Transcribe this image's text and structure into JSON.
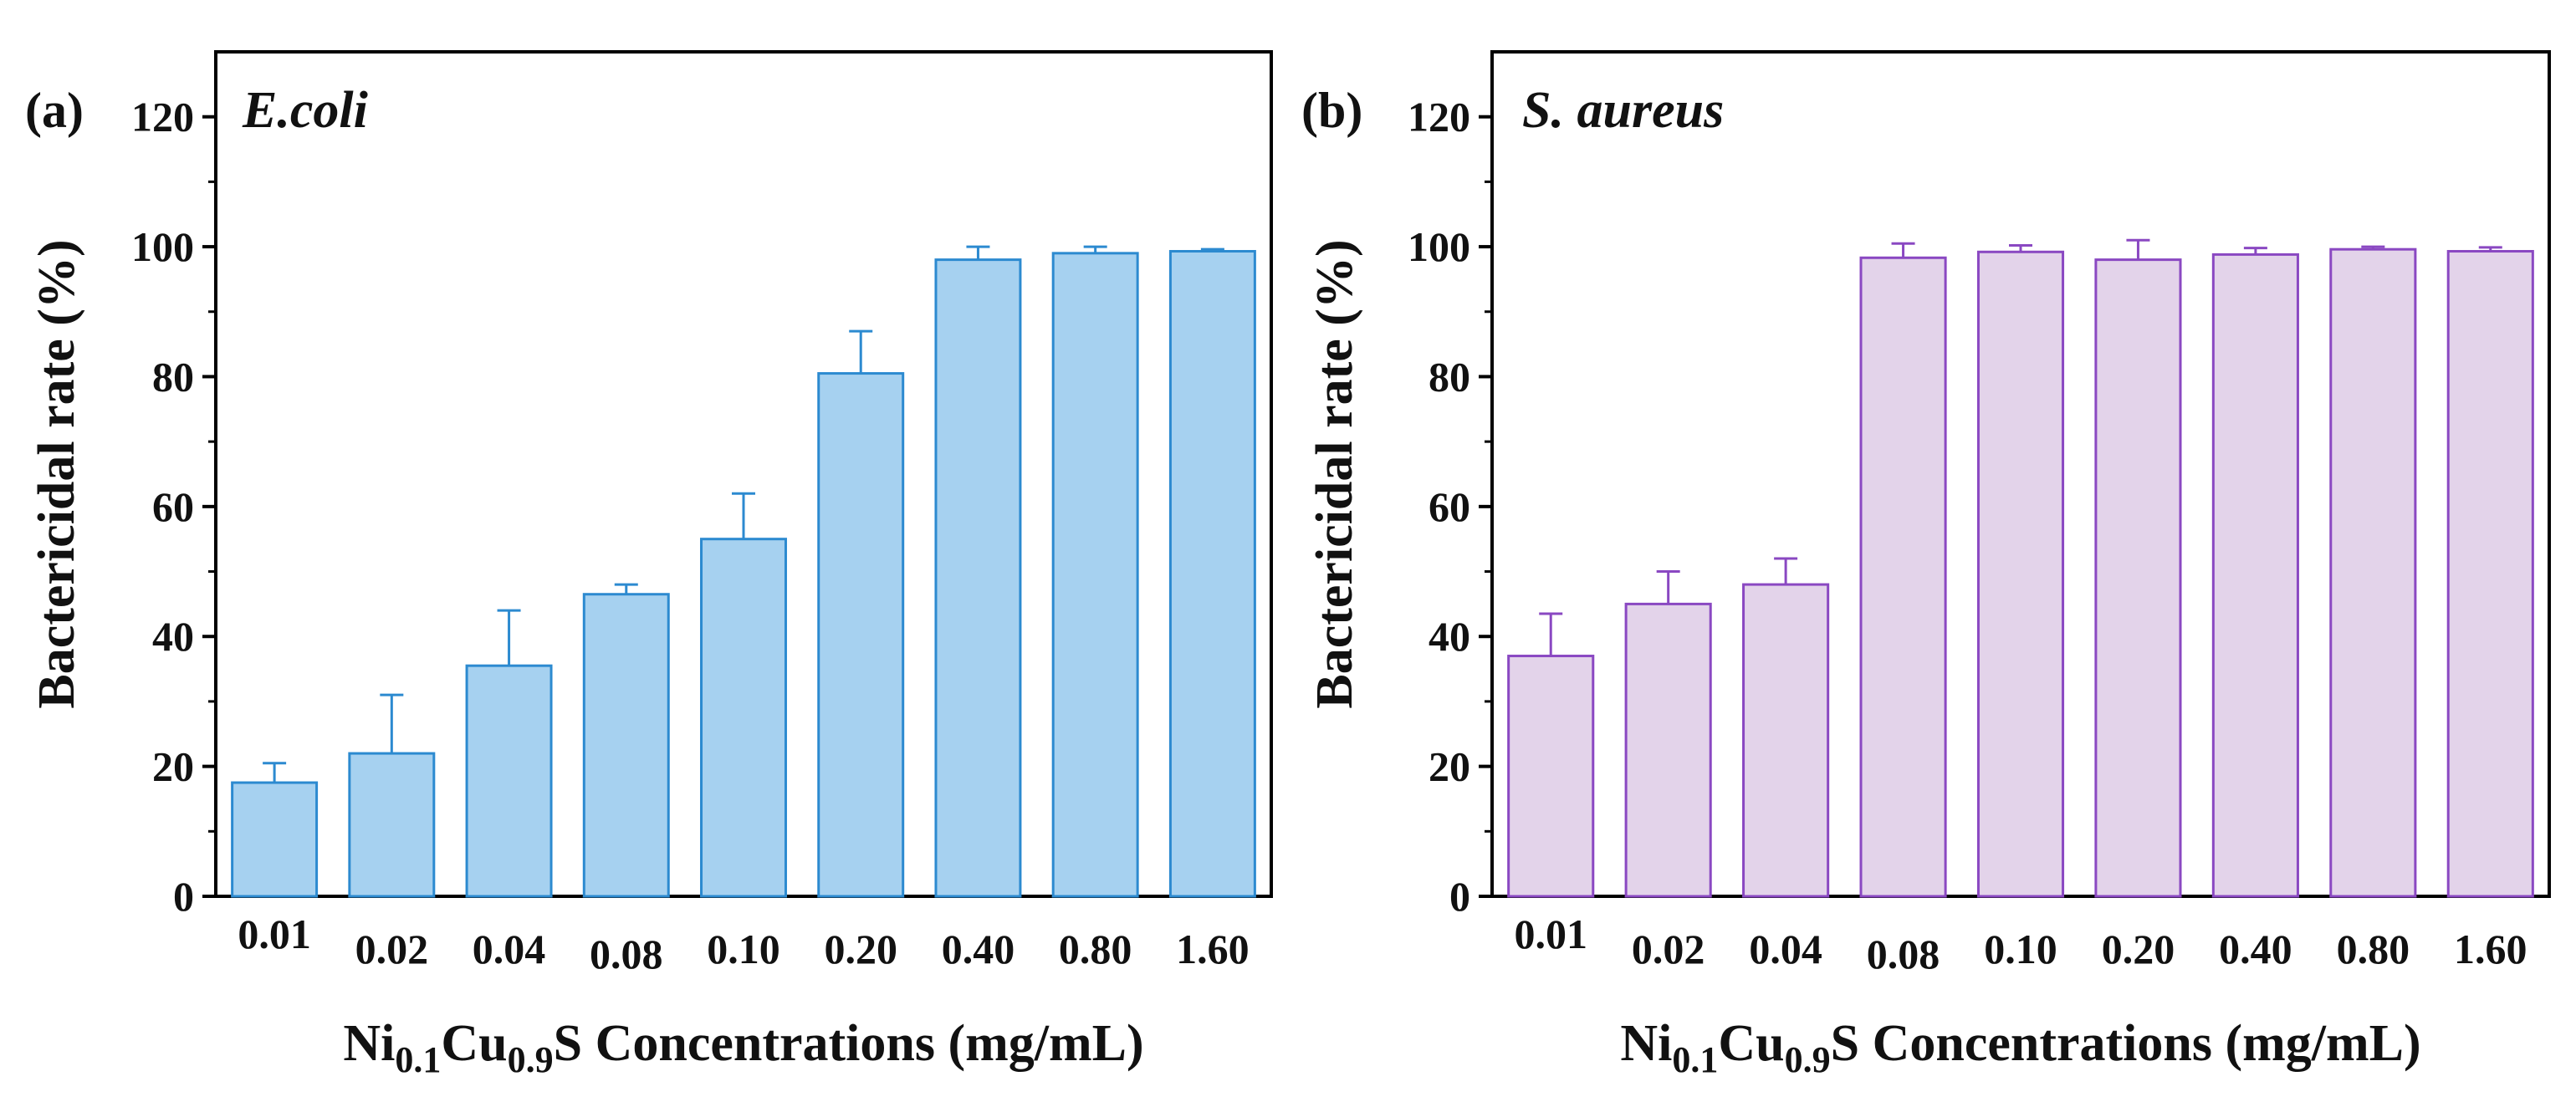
{
  "chart_data": [
    {
      "type": "bar",
      "panel_label": "(a)",
      "annotation": "E.coli",
      "xlabel_parts": [
        "Ni",
        "0.1",
        "Cu",
        "0.9",
        "S Concentrations (mg/mL)"
      ],
      "ylabel": "Bactericidal rate (%)",
      "categories": [
        "0.01",
        "0.02",
        "0.04",
        "0.08",
        "0.10",
        "0.20",
        "0.40",
        "0.80",
        "1.60"
      ],
      "values": [
        17.5,
        22,
        35.5,
        46.5,
        55,
        80.5,
        98,
        99,
        99.3
      ],
      "errors": [
        3,
        9,
        8.5,
        1.5,
        7,
        6.5,
        2,
        1,
        0.3
      ],
      "ylim": [
        0,
        130
      ],
      "yticks": [
        0,
        20,
        40,
        60,
        80,
        100,
        120
      ],
      "grid": false,
      "bar_fill": "#a6d1f0",
      "bar_stroke": "#2c8ad0"
    },
    {
      "type": "bar",
      "panel_label": "(b)",
      "annotation": "S. aureus",
      "xlabel_parts": [
        "Ni",
        "0.1",
        "Cu",
        "0.9",
        "S Concentrations (mg/mL)"
      ],
      "ylabel": "Bactericidal rate (%)",
      "categories": [
        "0.01",
        "0.02",
        "0.04",
        "0.08",
        "0.10",
        "0.20",
        "0.40",
        "0.80",
        "1.60"
      ],
      "values": [
        37,
        45,
        48,
        98.3,
        99.2,
        98,
        98.8,
        99.6,
        99.3
      ],
      "errors": [
        6.5,
        5,
        4,
        2.2,
        1,
        3,
        1,
        0.4,
        0.6
      ],
      "ylim": [
        0,
        130
      ],
      "yticks": [
        0,
        20,
        40,
        60,
        80,
        100,
        120
      ],
      "grid": false,
      "bar_fill": "#e3d3ea",
      "bar_stroke": "#8a48c2"
    }
  ]
}
